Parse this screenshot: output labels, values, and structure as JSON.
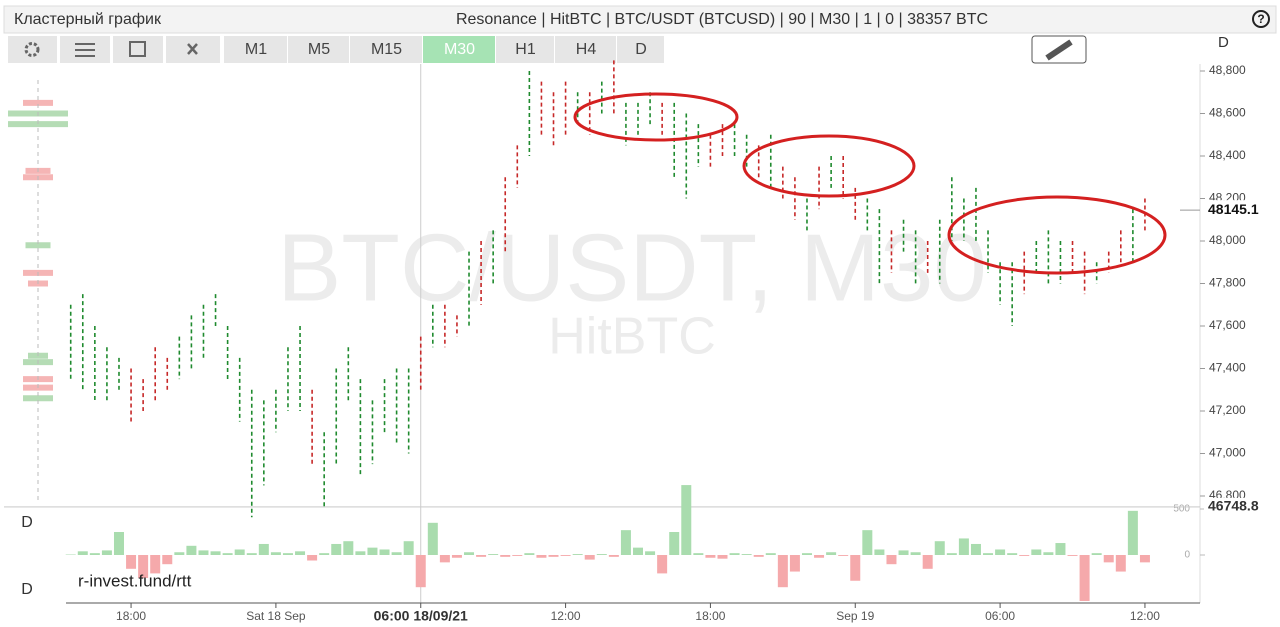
{
  "header": {
    "title": "Кластерный график",
    "info": "Resonance | HitBTC | BTC/USDT (BTCUSD) | 90 | M30 | 1 | 0 | 38357 BTC",
    "help": "?"
  },
  "toolbar": {
    "timeframes": [
      "M1",
      "M5",
      "M15",
      "M30",
      "H1",
      "H4",
      "D"
    ],
    "active": "M30"
  },
  "footer": "r-invest.fund/rtt",
  "chart_data": {
    "type": "range_bar",
    "watermark": {
      "symbol": "BTC/USDT, M30",
      "exchange": "HitBTC"
    },
    "pane_labels": {
      "main": "D",
      "delta_top": "D",
      "delta_bottom": "D"
    },
    "categories": [
      null,
      null,
      null,
      null,
      null,
      null,
      null,
      null,
      "18:00",
      null,
      null,
      null,
      null,
      null,
      null,
      null,
      null,
      null,
      null,
      null,
      "Sat 18 Sep",
      null,
      null,
      null,
      null,
      null,
      null,
      null,
      null,
      null,
      null,
      null,
      "06:00 18/09/21",
      null,
      null,
      null,
      null,
      null,
      null,
      null,
      null,
      null,
      null,
      null,
      "12:00",
      null,
      null,
      null,
      null,
      null,
      null,
      null,
      null,
      null,
      null,
      null,
      "18:00",
      null,
      null,
      null,
      null,
      null,
      null,
      null,
      null,
      null,
      null,
      null,
      "Sep 19",
      null,
      null,
      null,
      null,
      null,
      null,
      null,
      null,
      null,
      null,
      null,
      "06:00",
      null,
      null,
      null,
      null,
      null,
      null,
      null,
      null,
      null,
      null,
      null,
      "12:00"
    ],
    "high": [
      null,
      null,
      null,
      47700,
      47750,
      47600,
      47500,
      47450,
      47400,
      47350,
      47500,
      47450,
      47550,
      47650,
      47700,
      47750,
      47600,
      47450,
      47300,
      47250,
      47300,
      47500,
      47600,
      47300,
      47100,
      47400,
      47500,
      47350,
      47250,
      47350,
      47400,
      47400,
      47550,
      47700,
      47700,
      47650,
      47950,
      48000,
      48050,
      48300,
      48450,
      48800,
      48750,
      48700,
      48750,
      48700,
      48700,
      48750,
      48850,
      48650,
      48650,
      48700,
      48650,
      48650,
      48600,
      48550,
      48500,
      48550,
      48550,
      48500,
      48450,
      48500,
      48350,
      48300,
      48200,
      48350,
      48400,
      48400,
      48250,
      48200,
      48150,
      48050,
      48100,
      48050,
      48000,
      48100,
      48300,
      48200,
      48250,
      48050,
      47900,
      47900,
      47950,
      48000,
      48050,
      48000,
      48000,
      47950,
      47900,
      47950,
      48050,
      48150,
      48200
    ],
    "low": [
      null,
      null,
      null,
      47350,
      47300,
      47250,
      47250,
      47300,
      47150,
      47200,
      47250,
      47300,
      47350,
      47400,
      47450,
      47600,
      47350,
      47150,
      46700,
      46850,
      47100,
      47200,
      47200,
      46950,
      46750,
      46950,
      47250,
      46900,
      46950,
      47100,
      47050,
      47000,
      47300,
      47500,
      47500,
      47550,
      47600,
      47700,
      47800,
      47950,
      48250,
      48400,
      48500,
      48450,
      48500,
      48550,
      48500,
      48600,
      48600,
      48450,
      48500,
      48550,
      48500,
      48300,
      48200,
      48350,
      48350,
      48400,
      48400,
      48350,
      48300,
      48250,
      48200,
      48100,
      48050,
      48150,
      48250,
      48200,
      48100,
      48050,
      47800,
      47850,
      47950,
      47800,
      47850,
      47800,
      48000,
      48000,
      48000,
      47850,
      47700,
      47600,
      47750,
      47850,
      47800,
      47800,
      47850,
      47750,
      47800,
      47850,
      47900,
      47900,
      48050
    ],
    "delta": [
      null,
      null,
      null,
      5,
      40,
      20,
      50,
      250,
      -150,
      -250,
      -200,
      -100,
      30,
      100,
      50,
      40,
      20,
      60,
      20,
      120,
      30,
      20,
      40,
      -60,
      20,
      120,
      150,
      40,
      80,
      60,
      30,
      150,
      -350,
      350,
      -80,
      -30,
      30,
      -20,
      10,
      -20,
      -10,
      20,
      -30,
      -20,
      -10,
      10,
      -50,
      10,
      -20,
      270,
      80,
      40,
      -200,
      250,
      760,
      20,
      -30,
      -40,
      20,
      10,
      -20,
      20,
      -350,
      -180,
      20,
      -30,
      30,
      -10,
      -280,
      270,
      60,
      -100,
      50,
      30,
      -150,
      150,
      20,
      180,
      120,
      20,
      60,
      20,
      -10,
      60,
      30,
      130,
      -10,
      -500,
      20,
      -80,
      -180,
      480,
      -80
    ],
    "colors": {
      "up": "#1f8a2e",
      "down": "#c62828",
      "delta_up": "#a9dcae",
      "delta_down": "#f5a9ab"
    },
    "profile": {
      "prices": [
        48650,
        48600,
        48550,
        48330,
        48300,
        47980,
        47850,
        47800,
        47460,
        47430,
        47350,
        47310,
        47260
      ],
      "values": [
        30,
        60,
        60,
        25,
        30,
        25,
        30,
        20,
        20,
        30,
        30,
        30,
        30
      ],
      "colors": [
        "#f5b5b5",
        "#b5dcb5",
        "#b5dcb5",
        "#f5b5b5",
        "#f5b5b5",
        "#b5dcb5",
        "#f5b5b5",
        "#f5b5b5",
        "#b5dcb5",
        "#b5dcb5",
        "#f5b5b5",
        "#f5b5b5",
        "#b5dcb5"
      ]
    },
    "ylim": [
      46800,
      48800
    ],
    "yticks": [
      {
        "value": 46800,
        "label": "46,800"
      },
      {
        "value": 47000,
        "label": "47,000"
      },
      {
        "value": 47200,
        "label": "47,200"
      },
      {
        "value": 47400,
        "label": "47,400"
      },
      {
        "value": 47600,
        "label": "47,600"
      },
      {
        "value": 47800,
        "label": "47,800"
      },
      {
        "value": 48000,
        "label": "48,000"
      },
      {
        "value": 48200,
        "label": "48,200"
      },
      {
        "value": 48400,
        "label": "48,400"
      },
      {
        "value": 48600,
        "label": "48,600"
      },
      {
        "value": 48800,
        "label": "48,800"
      }
    ],
    "y2lim": [
      -500,
      500
    ],
    "y2ticks": [
      500,
      0
    ],
    "last_price": 48145.1,
    "crosshair": {
      "category": 32,
      "price": 46748.8
    }
  }
}
